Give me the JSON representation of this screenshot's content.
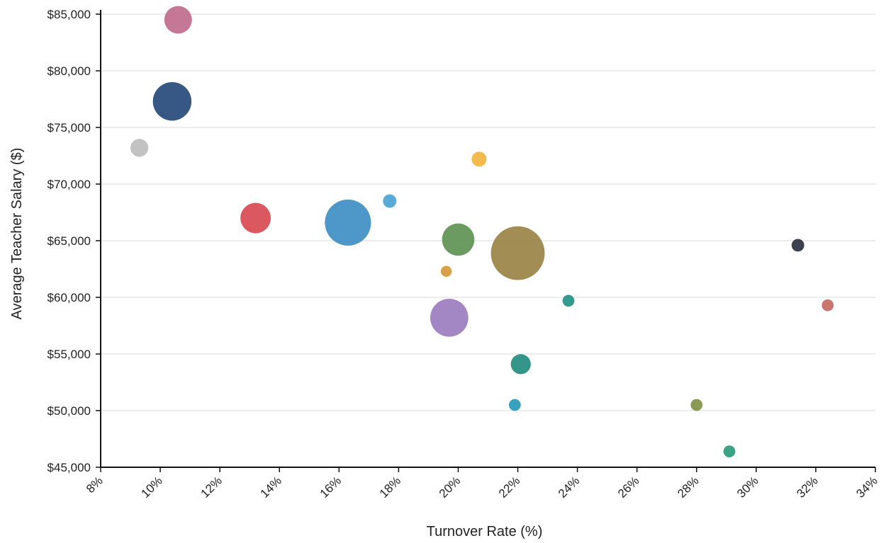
{
  "chart_data": {
    "type": "scatter",
    "variant": "bubble",
    "xlabel": "Turnover Rate (%)",
    "ylabel": "Average Teacher Salary ($)",
    "xlim": [
      8,
      34
    ],
    "ylim": [
      45000,
      85000
    ],
    "x_ticks": [
      8,
      10,
      12,
      14,
      16,
      18,
      20,
      22,
      24,
      26,
      28,
      30,
      32,
      34
    ],
    "y_ticks": [
      45000,
      50000,
      55000,
      60000,
      65000,
      70000,
      75000,
      80000,
      85000
    ],
    "x_tick_labels": [
      "8%",
      "10%",
      "12%",
      "14%",
      "16%",
      "18%",
      "20%",
      "22%",
      "24%",
      "26%",
      "28%",
      "30%",
      "32%",
      "34%"
    ],
    "y_tick_labels": [
      "$45,000",
      "$50,000",
      "$55,000",
      "$60,000",
      "$65,000",
      "$70,000",
      "$75,000",
      "$80,000",
      "$85,000"
    ],
    "grid": "horizontal",
    "legend": "none",
    "points": [
      {
        "x": 10.6,
        "y": 84500,
        "size": 3.8,
        "color": "#c06c8c"
      },
      {
        "x": 10.4,
        "y": 77300,
        "size": 7.4,
        "color": "#264a7a"
      },
      {
        "x": 9.3,
        "y": 73200,
        "size": 1.6,
        "color": "#bdbdbd"
      },
      {
        "x": 20.7,
        "y": 72200,
        "size": 1.1,
        "color": "#f2b53c"
      },
      {
        "x": 17.7,
        "y": 68500,
        "size": 0.9,
        "color": "#4aa3d6"
      },
      {
        "x": 13.2,
        "y": 67000,
        "size": 4.6,
        "color": "#d94a52"
      },
      {
        "x": 16.3,
        "y": 66600,
        "size": 10.6,
        "color": "#3f8fc4"
      },
      {
        "x": 20.0,
        "y": 65100,
        "size": 5.2,
        "color": "#5e9254"
      },
      {
        "x": 22.0,
        "y": 63900,
        "size": 14.4,
        "color": "#9a8346"
      },
      {
        "x": 31.4,
        "y": 64600,
        "size": 0.8,
        "color": "#2c3140"
      },
      {
        "x": 19.6,
        "y": 62300,
        "size": 0.6,
        "color": "#d3993a"
      },
      {
        "x": 23.7,
        "y": 59700,
        "size": 0.7,
        "color": "#239485"
      },
      {
        "x": 32.4,
        "y": 59300,
        "size": 0.7,
        "color": "#c56a63"
      },
      {
        "x": 19.7,
        "y": 58200,
        "size": 7.2,
        "color": "#9b7cbf"
      },
      {
        "x": 22.1,
        "y": 54100,
        "size": 2.0,
        "color": "#238c7f"
      },
      {
        "x": 21.9,
        "y": 50500,
        "size": 0.7,
        "color": "#2799b8"
      },
      {
        "x": 28.0,
        "y": 50500,
        "size": 0.7,
        "color": "#7f9147"
      },
      {
        "x": 29.1,
        "y": 46400,
        "size": 0.7,
        "color": "#2a9a78"
      }
    ]
  }
}
